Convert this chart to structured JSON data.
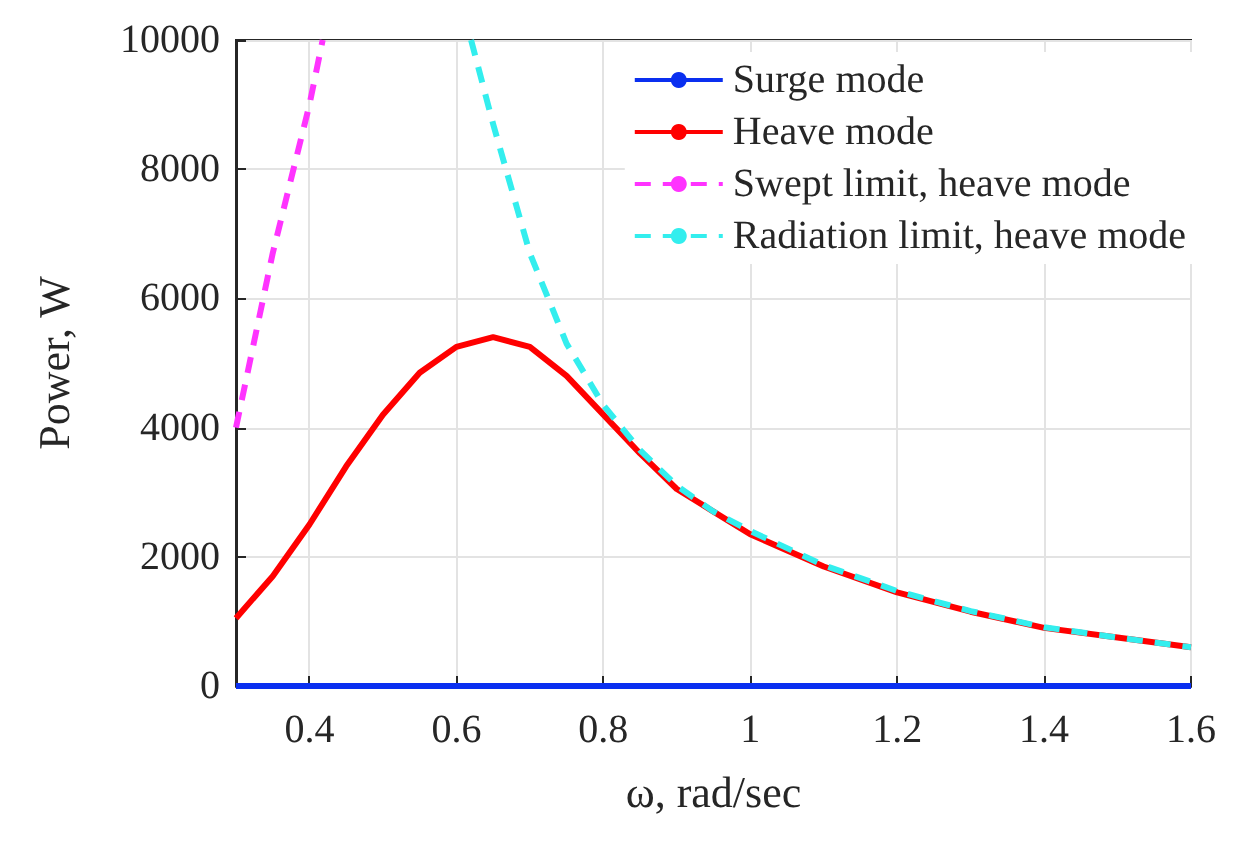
{
  "chart_data": {
    "type": "line",
    "xlabel": "ω, rad/sec",
    "ylabel": "Power, W",
    "xlim": [
      0.3,
      1.6
    ],
    "xticks": [
      0.4,
      0.6,
      0.8,
      1,
      1.2,
      1.4,
      1.6
    ],
    "ylim": [
      0,
      10000
    ],
    "yticks": [
      0,
      2000,
      4000,
      6000,
      8000,
      10000
    ],
    "grid": true,
    "legend": "top right",
    "marker": "none",
    "series": [
      {
        "name": "Surge mode",
        "color": "#0a2ff0",
        "line_style": "solid",
        "x": [
          0.3,
          1.6
        ],
        "values": [
          0,
          0
        ]
      },
      {
        "name": "Heave mode",
        "color": "#ff0000",
        "line_style": "solid",
        "x": [
          0.3,
          0.35,
          0.4,
          0.45,
          0.5,
          0.55,
          0.6,
          0.65,
          0.7,
          0.75,
          0.8,
          0.85,
          0.9,
          0.95,
          1.0,
          1.1,
          1.2,
          1.3,
          1.4,
          1.5,
          1.6
        ],
        "values": [
          1050,
          1700,
          2500,
          3400,
          4200,
          4850,
          5250,
          5400,
          5250,
          4800,
          4200,
          3600,
          3050,
          2700,
          2350,
          1850,
          1450,
          1150,
          900,
          750,
          600
        ]
      },
      {
        "name": "Swept limit, heave mode",
        "color": "#ff33ff",
        "line_style": "dashed",
        "x": [
          0.3,
          0.35,
          0.4,
          0.418
        ],
        "values": [
          4000,
          6700,
          9000,
          10000
        ]
      },
      {
        "name": "Radiation limit, heave mode",
        "color": "#33eeee",
        "line_style": "dashed",
        "x": [
          0.62,
          0.65,
          0.7,
          0.75,
          0.8,
          0.85,
          0.9,
          0.95,
          1.0,
          1.1,
          1.2,
          1.3,
          1.4,
          1.5,
          1.6
        ],
        "values": [
          10000,
          8700,
          6700,
          5300,
          4350,
          3650,
          3100,
          2700,
          2400,
          1870,
          1470,
          1160,
          910,
          750,
          600
        ]
      }
    ]
  }
}
